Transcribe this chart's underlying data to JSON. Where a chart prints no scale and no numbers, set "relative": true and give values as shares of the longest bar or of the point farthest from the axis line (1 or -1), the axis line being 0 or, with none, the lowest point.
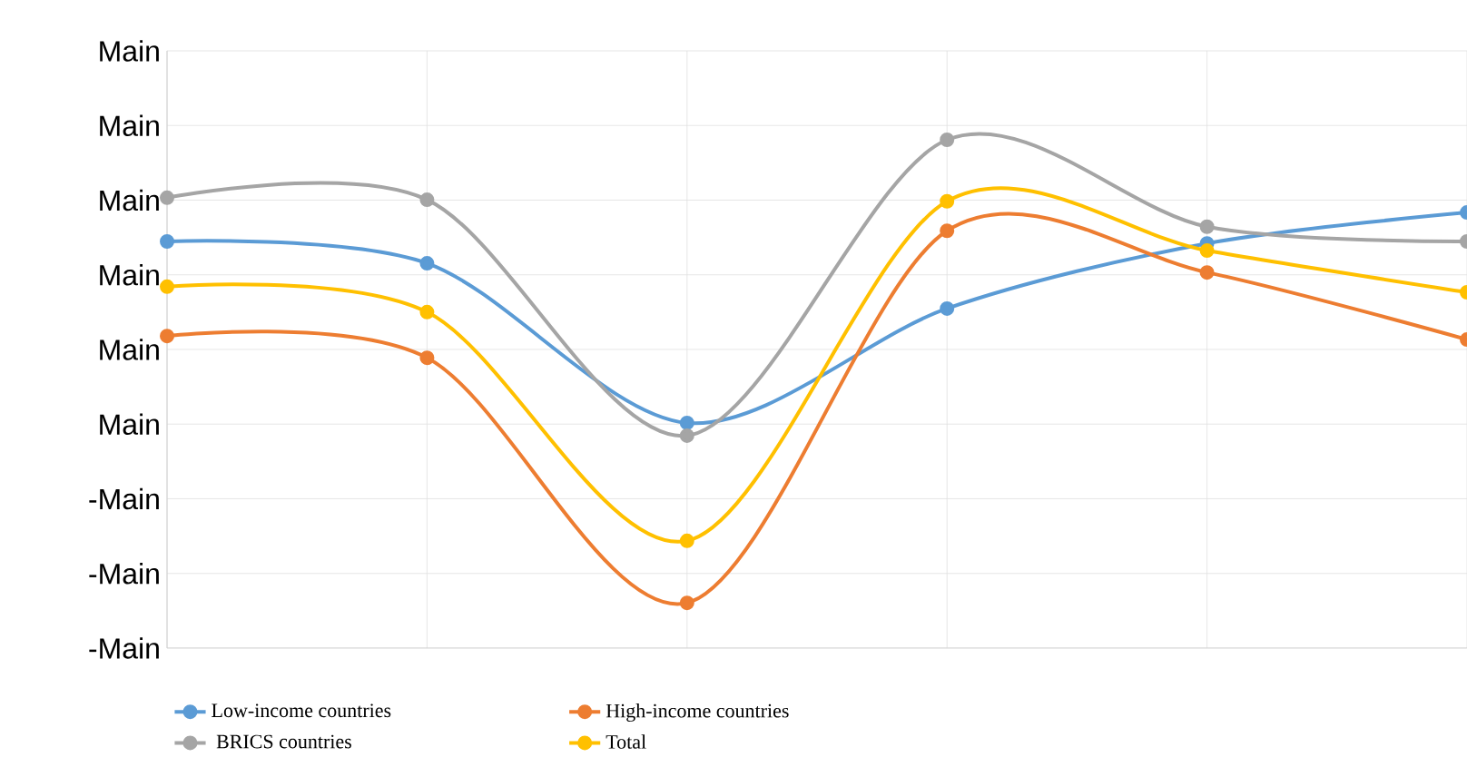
{
  "chart_data": {
    "type": "line",
    "relative": true,
    "categories": [
      null,
      null,
      null,
      null,
      null,
      null
    ],
    "series": [
      {
        "name": "Low-income countries",
        "color": "#5b9bd5",
        "values": [
          0.8,
          0.757,
          0.443,
          0.668,
          0.796,
          0.857
        ]
      },
      {
        "name": "High-income countries",
        "color": "#ed7d31",
        "values": [
          0.614,
          0.571,
          0.089,
          0.821,
          0.739,
          0.607
        ]
      },
      {
        "name": " BRICS countries",
        "color": "#a5a5a5",
        "values": [
          0.886,
          0.882,
          0.418,
          1,
          0.829,
          0.8
        ]
      },
      {
        "name": "Total",
        "color": "#ffc000",
        "values": [
          0.711,
          0.661,
          0.211,
          0.879,
          0.782,
          0.7
        ]
      }
    ],
    "annotations": [
      "Main",
      "Main",
      "Main",
      "Main",
      "Main",
      "Main",
      "-Main",
      "-Main",
      "-Main"
    ],
    "grid": true,
    "legend": "bottom",
    "marker": "circle",
    "line_style": "solid"
  }
}
